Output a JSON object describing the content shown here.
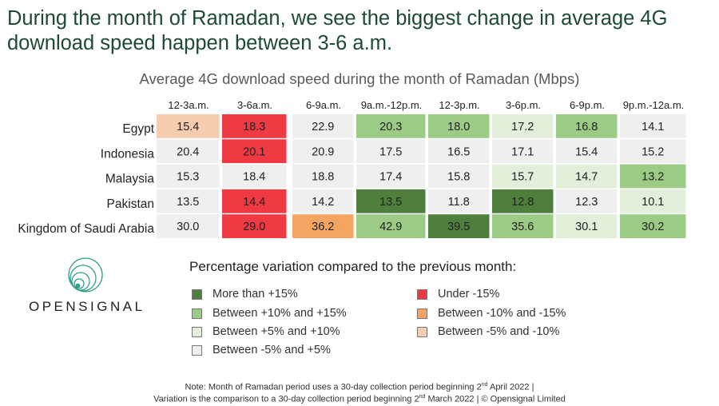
{
  "headline": {
    "line1": "During the month of Ramadan, we see the biggest change in average 4G",
    "line2": "download speed happen between 3-6 a.m."
  },
  "colors": {
    "more_than_15": "#4f7f3c",
    "between_10_15": "#9ccb86",
    "between_5_10": "#e2efdb",
    "between_neg5_5": "#efefef",
    "under_neg15": "#ef3943",
    "between_neg10_neg15": "#f5a462",
    "between_neg5_neg10": "#f7cdb0"
  },
  "chart_data": {
    "type": "heatmap",
    "title": "Average 4G download speed during the month of Ramadan (Mbps)",
    "columns": [
      "12-3a.m.",
      "3-6a.m.",
      "6-9a.m.",
      "9a.m.-12p.m.",
      "12-3p.m.",
      "3-6p.m.",
      "6-9p.m.",
      "9p.m.-12a.m."
    ],
    "rows": [
      {
        "name": "Egypt",
        "values": [
          "15.4",
          "18.3",
          "22.9",
          "20.3",
          "18.0",
          "17.2",
          "16.8",
          "14.1"
        ],
        "categories": [
          "between_neg5_neg10",
          "under_neg15",
          "between_neg5_5",
          "between_10_15",
          "between_10_15",
          "between_5_10",
          "between_10_15",
          "between_neg5_5"
        ]
      },
      {
        "name": "Indonesia",
        "values": [
          "20.4",
          "20.1",
          "20.9",
          "17.5",
          "16.5",
          "17.1",
          "15.4",
          "15.2"
        ],
        "categories": [
          "between_neg5_5",
          "under_neg15",
          "between_neg5_5",
          "between_neg5_5",
          "between_neg5_5",
          "between_neg5_5",
          "between_neg5_5",
          "between_neg5_5"
        ]
      },
      {
        "name": "Malaysia",
        "values": [
          "15.3",
          "18.4",
          "18.8",
          "17.4",
          "15.8",
          "15.7",
          "14.7",
          "13.2"
        ],
        "categories": [
          "between_neg5_5",
          "between_neg5_5",
          "between_neg5_5",
          "between_neg5_5",
          "between_neg5_5",
          "between_5_10",
          "between_5_10",
          "between_10_15"
        ]
      },
      {
        "name": "Pakistan",
        "values": [
          "13.5",
          "14.4",
          "14.2",
          "13.5",
          "11.8",
          "12.8",
          "12.3",
          "10.1"
        ],
        "categories": [
          "between_neg5_5",
          "under_neg15",
          "between_neg5_5",
          "more_than_15",
          "between_neg5_5",
          "more_than_15",
          "between_neg5_5",
          "between_5_10"
        ]
      },
      {
        "name": "Kingdom of Saudi Arabia",
        "values": [
          "30.0",
          "29.0",
          "36.2",
          "42.9",
          "39.5",
          "35.6",
          "30.1",
          "30.2"
        ],
        "categories": [
          "between_neg5_5",
          "under_neg15",
          "between_neg10_neg15",
          "between_10_15",
          "more_than_15",
          "between_10_15",
          "between_5_10",
          "between_10_15"
        ]
      }
    ]
  },
  "logo": {
    "text": "OPENSIGNAL"
  },
  "legend": {
    "title": "Percentage variation compared to the previous month:",
    "items": [
      {
        "key": "more_than_15",
        "label": "More than +15%"
      },
      {
        "key": "between_10_15",
        "label": "Between +10% and +15%"
      },
      {
        "key": "between_5_10",
        "label": "Between +5% and +10%"
      },
      {
        "key": "between_neg5_5",
        "label": "Between -5% and +5%"
      },
      {
        "key": "under_neg15",
        "label": "Under -15%"
      },
      {
        "key": "between_neg10_neg15",
        "label": "Between -10% and -15%"
      },
      {
        "key": "between_neg5_neg10",
        "label": "Between -5% and -10%"
      }
    ]
  },
  "note": {
    "line1_a": "Note: Month of Ramadan period uses a 30-day collection period beginning 2",
    "line1_sup": "nd",
    "line1_b": " April 2022 |",
    "line2_a": "Variation is the comparison to a 30-day collection period beginning 2",
    "line2_sup": "nd",
    "line2_b": " March 2022 | © Opensignal Limited"
  }
}
